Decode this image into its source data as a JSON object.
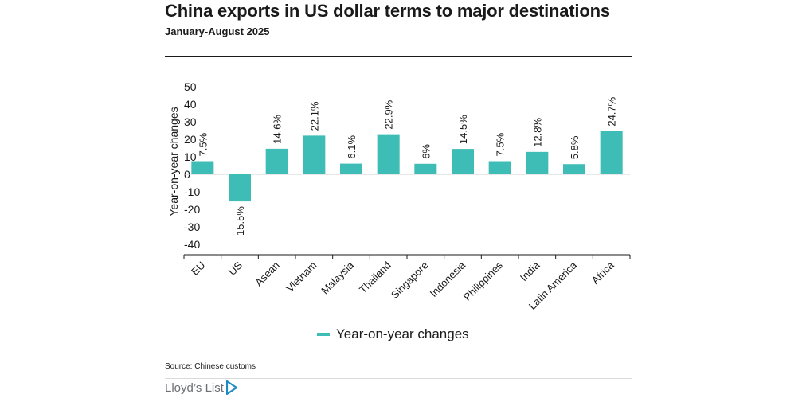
{
  "header": {
    "title": "China exports in US dollar terms to major destinations",
    "subtitle": "January-August 2025"
  },
  "legend": {
    "label": "Year-on-year changes"
  },
  "footer": {
    "source": "Source: Chinese customs",
    "logo_text": "Lloyd’s List"
  },
  "colors": {
    "bar": "#3dbdb5",
    "logo_accent": "#1b8bc6"
  },
  "chart_data": {
    "type": "bar",
    "title": "China exports in US dollar terms to major destinations",
    "subtitle": "January-August 2025",
    "xlabel": "",
    "ylabel": "Year-on-year changes",
    "ylim": [
      -40,
      50
    ],
    "yticks": [
      50,
      40,
      30,
      20,
      10,
      0,
      -10,
      -20,
      -30,
      -40
    ],
    "categories": [
      "EU",
      "US",
      "Asean",
      "Vietnam",
      "Malaysia",
      "Thailand",
      "Singapore",
      "Indonesia",
      "Philippines",
      "India",
      "Latin America",
      "Africa"
    ],
    "values": [
      7.5,
      -15.5,
      14.6,
      22.1,
      6.1,
      22.9,
      6,
      14.5,
      7.5,
      12.8,
      5.8,
      24.7
    ],
    "data_labels": [
      "7.5%",
      "-15.5%",
      "14.6%",
      "22.1%",
      "6.1%",
      "22.9%",
      "6%",
      "14.5%",
      "7.5%",
      "12.8%",
      "5.8%",
      "24.7%"
    ],
    "legend": [
      "Year-on-year changes"
    ],
    "legend_position": "bottom",
    "grid": false
  }
}
